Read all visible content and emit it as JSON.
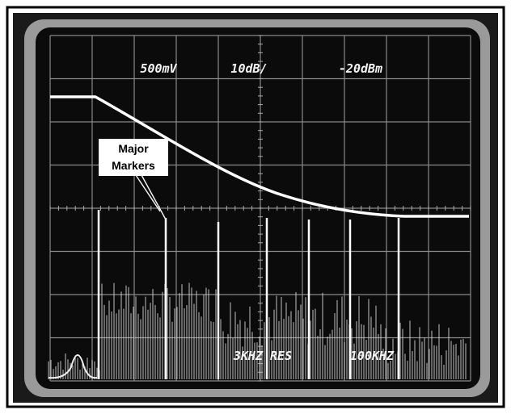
{
  "screen": {
    "top_labels": [
      "500mV",
      "10dB/",
      "-20dBm"
    ],
    "bottom_labels": [
      "3KHZ RES",
      "100KHZ"
    ]
  },
  "annotation": {
    "lines": [
      "Major",
      "Markers"
    ]
  }
}
